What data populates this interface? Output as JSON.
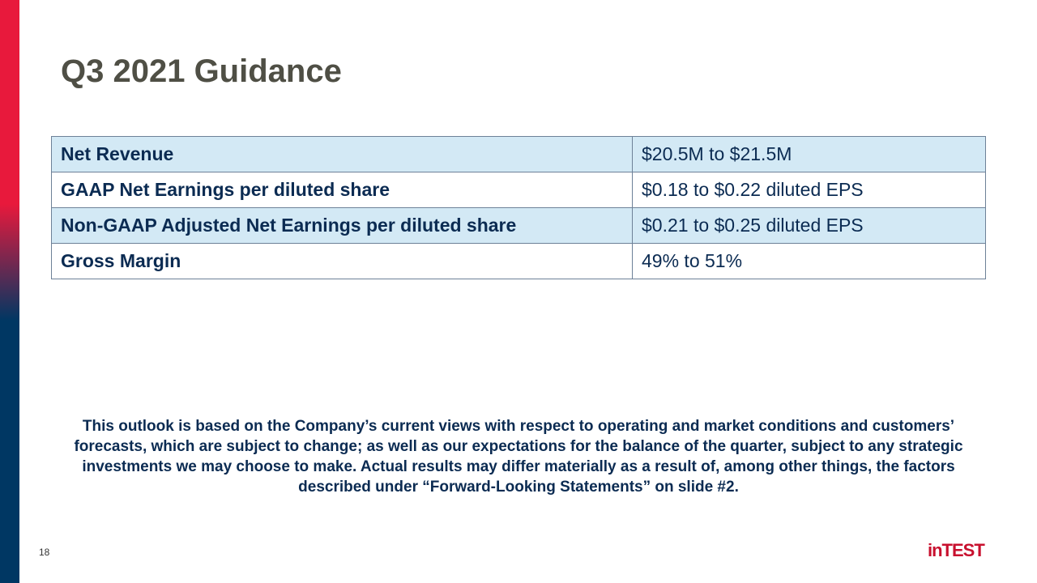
{
  "header": {
    "title": "Q3 2021 Guidance"
  },
  "table": {
    "rows": [
      [
        "Net Revenue",
        "$20.5M to $21.5M"
      ],
      [
        "GAAP Net Earnings per diluted share",
        "$0.18 to $0.22 diluted EPS"
      ],
      [
        "Non-GAAP Adjusted Net Earnings per diluted share",
        "$0.21 to $0.25 diluted EPS"
      ],
      [
        "Gross Margin",
        "49% to 51%"
      ]
    ]
  },
  "footnote": "This outlook is based on the Company’s current views with respect to operating and market conditions and customers’ forecasts, which are subject to change; as well as our expectations for the balance of the quarter, subject to any strategic investments we may choose to make. Actual results may differ materially as a result of, among other things, the factors described under “Forward-Looking Statements” on slide #2.",
  "footer": {
    "page": "18",
    "logo": "inTEST"
  }
}
